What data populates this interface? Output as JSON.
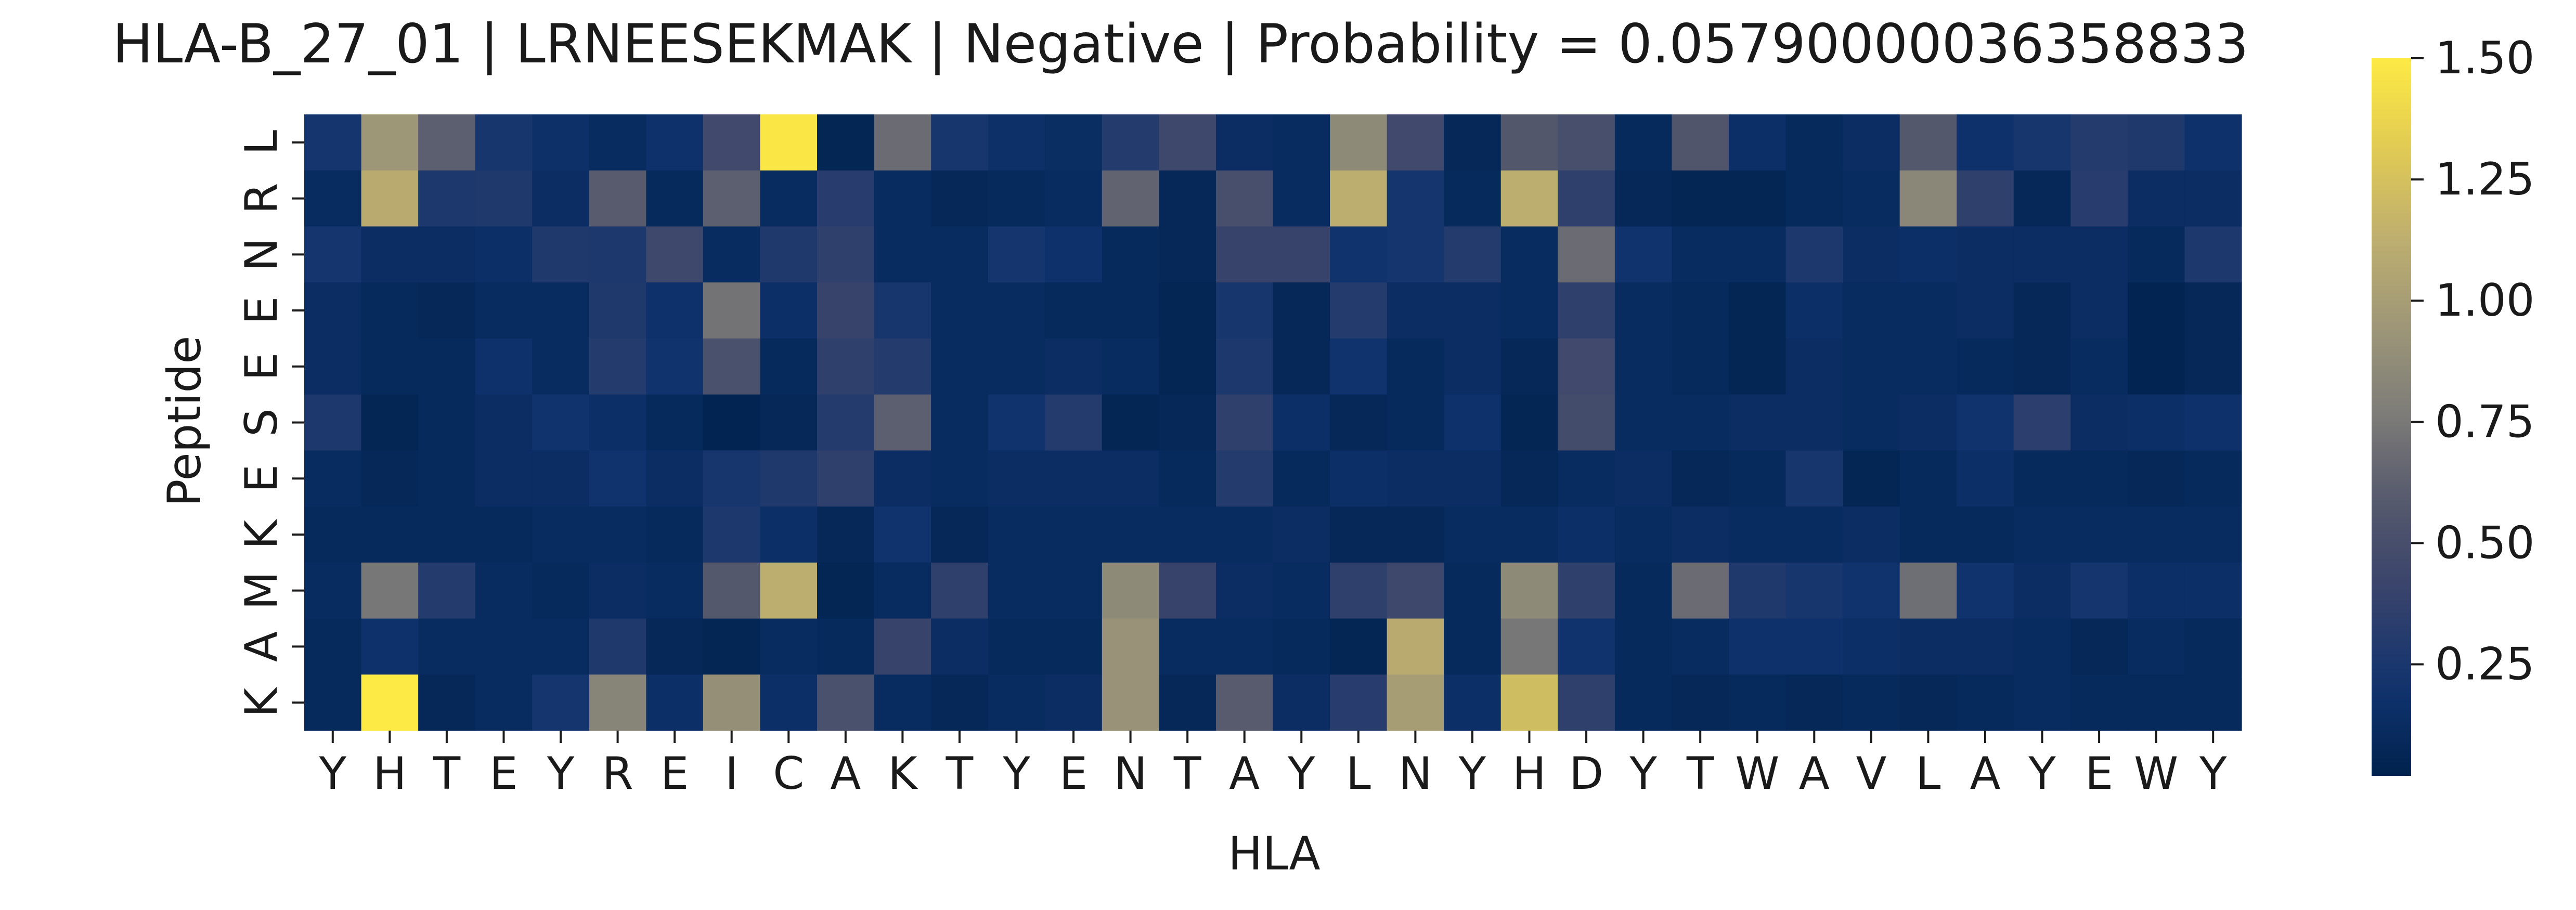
{
  "chart_data": {
    "type": "heatmap",
    "title": "HLA-B_27_01 | LRNEESEKMAK | Negative | Probability = 0.05790000036358833",
    "xlabel": "HLA",
    "ylabel": "Peptide",
    "x_categories": [
      "Y",
      "H",
      "T",
      "E",
      "Y",
      "R",
      "E",
      "I",
      "C",
      "A",
      "K",
      "T",
      "Y",
      "E",
      "N",
      "T",
      "A",
      "Y",
      "L",
      "N",
      "Y",
      "H",
      "D",
      "Y",
      "T",
      "W",
      "A",
      "V",
      "L",
      "A",
      "Y",
      "E",
      "W",
      "Y"
    ],
    "y_categories": [
      "L",
      "R",
      "N",
      "E",
      "E",
      "S",
      "E",
      "K",
      "M",
      "A",
      "K"
    ],
    "colorbar": {
      "colormap": "cividis",
      "range": [
        0.02,
        1.5
      ],
      "ticks": [
        0.25,
        0.5,
        0.75,
        1.0,
        1.25,
        1.5
      ],
      "tick_labels": [
        "0.25",
        "0.50",
        "0.75",
        "1.00",
        "1.25",
        "1.50"
      ]
    },
    "values": [
      [
        0.22,
        0.95,
        0.62,
        0.24,
        0.17,
        0.12,
        0.18,
        0.46,
        1.48,
        0.06,
        0.68,
        0.24,
        0.17,
        0.13,
        0.3,
        0.44,
        0.14,
        0.12,
        0.86,
        0.46,
        0.08,
        0.57,
        0.5,
        0.1,
        0.56,
        0.16,
        0.1,
        0.14,
        0.58,
        0.18,
        0.24,
        0.3,
        0.28,
        0.18
      ],
      [
        0.12,
        1.1,
        0.26,
        0.28,
        0.14,
        0.6,
        0.1,
        0.62,
        0.12,
        0.32,
        0.12,
        0.08,
        0.1,
        0.12,
        0.64,
        0.08,
        0.5,
        0.12,
        1.12,
        0.22,
        0.1,
        1.12,
        0.36,
        0.08,
        0.06,
        0.06,
        0.1,
        0.12,
        0.84,
        0.36,
        0.08,
        0.32,
        0.14,
        0.14
      ],
      [
        0.22,
        0.14,
        0.14,
        0.16,
        0.28,
        0.26,
        0.44,
        0.12,
        0.28,
        0.36,
        0.12,
        0.12,
        0.22,
        0.18,
        0.1,
        0.08,
        0.4,
        0.4,
        0.2,
        0.22,
        0.3,
        0.12,
        0.68,
        0.2,
        0.12,
        0.12,
        0.26,
        0.14,
        0.16,
        0.14,
        0.14,
        0.14,
        0.1,
        0.26
      ],
      [
        0.14,
        0.1,
        0.08,
        0.12,
        0.12,
        0.28,
        0.18,
        0.72,
        0.16,
        0.4,
        0.24,
        0.12,
        0.12,
        0.1,
        0.1,
        0.06,
        0.24,
        0.08,
        0.3,
        0.14,
        0.14,
        0.12,
        0.36,
        0.12,
        0.1,
        0.06,
        0.16,
        0.12,
        0.12,
        0.14,
        0.08,
        0.14,
        0.04,
        0.08
      ],
      [
        0.14,
        0.1,
        0.1,
        0.18,
        0.12,
        0.3,
        0.2,
        0.52,
        0.1,
        0.36,
        0.3,
        0.12,
        0.12,
        0.14,
        0.12,
        0.06,
        0.26,
        0.08,
        0.2,
        0.1,
        0.14,
        0.08,
        0.46,
        0.12,
        0.1,
        0.06,
        0.14,
        0.12,
        0.12,
        0.1,
        0.08,
        0.12,
        0.04,
        0.08
      ],
      [
        0.26,
        0.06,
        0.1,
        0.14,
        0.2,
        0.16,
        0.1,
        0.04,
        0.08,
        0.3,
        0.62,
        0.12,
        0.2,
        0.3,
        0.06,
        0.08,
        0.36,
        0.16,
        0.08,
        0.1,
        0.18,
        0.06,
        0.48,
        0.12,
        0.12,
        0.14,
        0.14,
        0.12,
        0.14,
        0.2,
        0.34,
        0.14,
        0.16,
        0.18
      ],
      [
        0.12,
        0.08,
        0.1,
        0.14,
        0.14,
        0.2,
        0.14,
        0.24,
        0.28,
        0.36,
        0.14,
        0.12,
        0.14,
        0.14,
        0.14,
        0.1,
        0.3,
        0.1,
        0.16,
        0.14,
        0.14,
        0.08,
        0.12,
        0.14,
        0.08,
        0.1,
        0.24,
        0.06,
        0.1,
        0.16,
        0.1,
        0.1,
        0.08,
        0.1
      ],
      [
        0.1,
        0.1,
        0.1,
        0.1,
        0.12,
        0.12,
        0.1,
        0.26,
        0.16,
        0.08,
        0.2,
        0.08,
        0.12,
        0.12,
        0.12,
        0.12,
        0.12,
        0.14,
        0.08,
        0.08,
        0.12,
        0.12,
        0.16,
        0.12,
        0.14,
        0.12,
        0.12,
        0.14,
        0.1,
        0.1,
        0.12,
        0.12,
        0.12,
        0.12
      ],
      [
        0.12,
        0.74,
        0.3,
        0.12,
        0.1,
        0.14,
        0.12,
        0.58,
        1.12,
        0.06,
        0.12,
        0.36,
        0.12,
        0.12,
        0.86,
        0.4,
        0.14,
        0.12,
        0.36,
        0.44,
        0.1,
        0.86,
        0.36,
        0.1,
        0.68,
        0.28,
        0.24,
        0.2,
        0.7,
        0.2,
        0.14,
        0.22,
        0.16,
        0.16
      ],
      [
        0.1,
        0.18,
        0.12,
        0.12,
        0.12,
        0.28,
        0.08,
        0.06,
        0.12,
        0.1,
        0.4,
        0.14,
        0.1,
        0.1,
        0.92,
        0.12,
        0.12,
        0.1,
        0.06,
        1.1,
        0.1,
        0.74,
        0.2,
        0.1,
        0.12,
        0.18,
        0.18,
        0.16,
        0.14,
        0.14,
        0.12,
        0.08,
        0.12,
        0.1
      ],
      [
        0.1,
        1.5,
        0.08,
        0.12,
        0.22,
        0.82,
        0.16,
        0.9,
        0.16,
        0.52,
        0.12,
        0.08,
        0.12,
        0.14,
        0.92,
        0.08,
        0.6,
        0.14,
        0.32,
        1.0,
        0.16,
        1.22,
        0.36,
        0.1,
        0.08,
        0.1,
        0.08,
        0.1,
        0.08,
        0.1,
        0.12,
        0.1,
        0.1,
        0.1
      ]
    ]
  }
}
